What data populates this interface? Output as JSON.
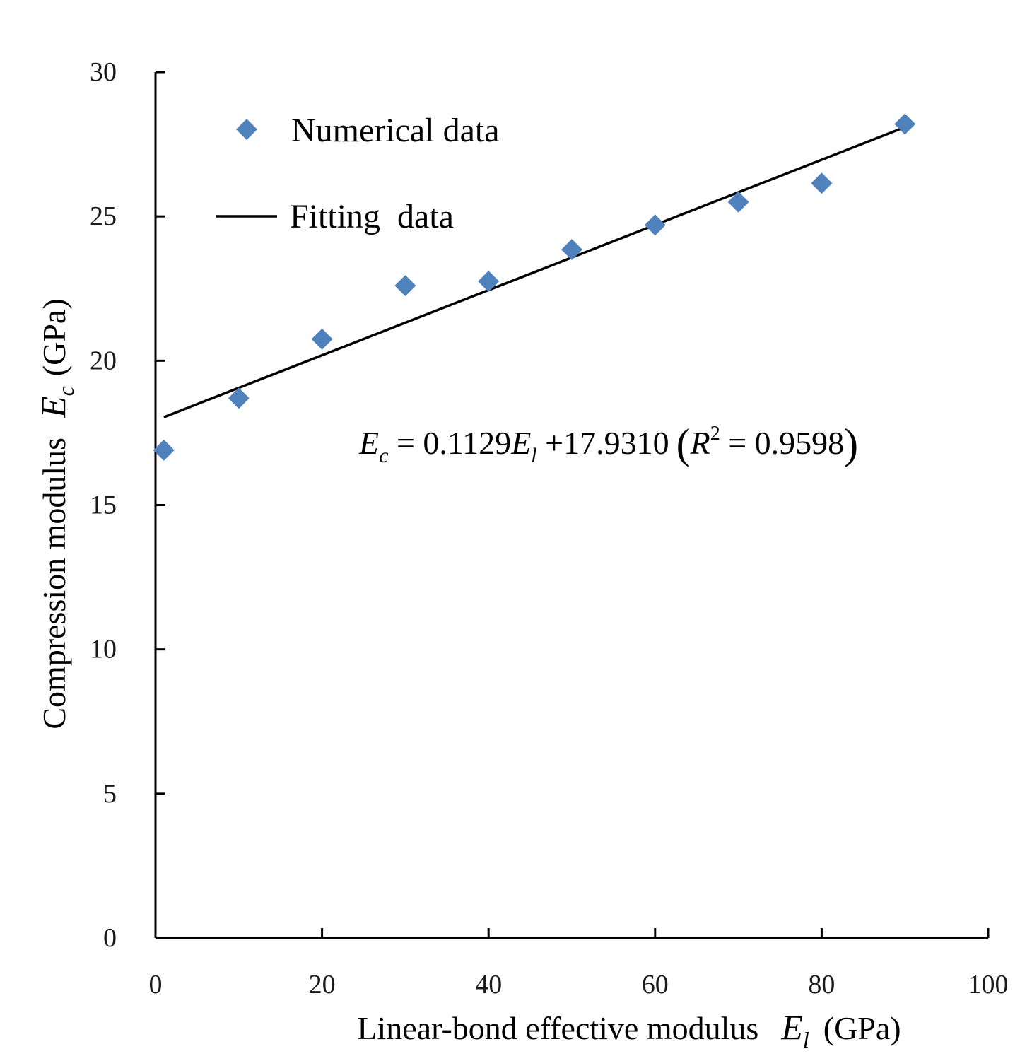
{
  "chart_data": {
    "type": "scatter",
    "title": "",
    "xlabel": {
      "text": "Linear-bond effective modulus",
      "symbol": "E",
      "subscript": "l",
      "unit": "(GPa)"
    },
    "ylabel": {
      "text": "Compression modulus",
      "symbol": "E",
      "subscript": "c",
      "unit": "(GPa)"
    },
    "xlim": [
      0,
      100
    ],
    "ylim": [
      0,
      30
    ],
    "xticks": [
      0,
      20,
      40,
      60,
      80,
      100
    ],
    "yticks": [
      0,
      5,
      10,
      15,
      20,
      25,
      30
    ],
    "grid": false,
    "legend_position": "top-left",
    "series": [
      {
        "name": "Numerical data",
        "kind": "scatter",
        "marker": "diamond",
        "color": "#4f81bd",
        "x": [
          1,
          10,
          20,
          30,
          40,
          50,
          60,
          70,
          80,
          90
        ],
        "y": [
          16.9,
          18.7,
          20.75,
          22.6,
          22.75,
          23.85,
          24.7,
          25.5,
          26.15,
          28.2
        ]
      },
      {
        "name": "Fitting  data",
        "kind": "line",
        "color": "#000000",
        "x": [
          1,
          90
        ],
        "slope": 0.1129,
        "intercept": 17.931
      }
    ],
    "annotation": {
      "lhs_symbol": "E",
      "lhs_sub": "c",
      "rhs_part1": " = 0.1129",
      "rhs_symbol": "E",
      "rhs_sub": "l",
      "rhs_part2": " +17.9310",
      "open_paren": "(",
      "r_symbol": "R",
      "r_exp": "2",
      "r_value": " = 0.9598",
      "close_paren": ")"
    }
  }
}
